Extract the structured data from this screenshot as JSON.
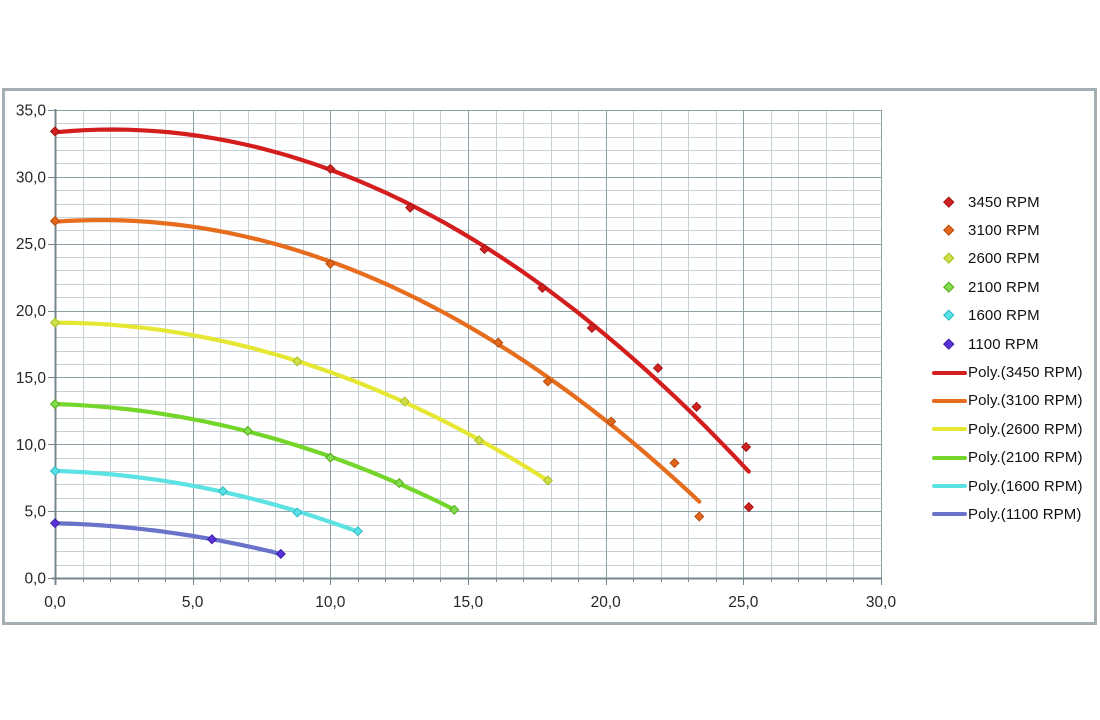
{
  "chart_data": {
    "type": "scatter",
    "title": "",
    "description": "Performance curves: six speed series with 2nd-order polynomial trendlines",
    "x_axis": {
      "min": 0,
      "max": 30,
      "major_step": 5,
      "minor_step": 1,
      "major_labels": [
        "0,0",
        "5,0",
        "10,0",
        "15,0",
        "20,0",
        "25,0",
        "30,0"
      ]
    },
    "y_axis": {
      "min": 0,
      "max": 35,
      "major_step": 5,
      "minor_step": 1,
      "major_labels": [
        "0,0",
        "5,0",
        "10,0",
        "15,0",
        "20,0",
        "25,0",
        "30,0",
        "35,0"
      ]
    },
    "grid": "major-and-minor-both-axes",
    "legend_position": "right",
    "trendline": {
      "type": "polynomial",
      "order": 2,
      "note": "drawn over each series x-range"
    },
    "series": [
      {
        "name": "3450 RPM",
        "poly_label": "Poly.(3450 RPM)",
        "line_color": "#d41e1e",
        "marker_color": "#d02222",
        "marker_stroke": "#a31212",
        "points": [
          [
            0,
            33.4
          ],
          [
            10,
            30.6
          ],
          [
            12.9,
            27.7
          ],
          [
            15.6,
            24.6
          ],
          [
            17.7,
            21.7
          ],
          [
            19.5,
            18.7
          ],
          [
            21.9,
            15.7
          ],
          [
            23.3,
            12.8
          ],
          [
            25.1,
            9.8
          ],
          [
            25.2,
            5.3
          ]
        ]
      },
      {
        "name": "3100 RPM",
        "poly_label": "Poly.(3100 RPM)",
        "line_color": "#e66c1e",
        "marker_color": "#e3661c",
        "marker_stroke": "#b54e0e",
        "points": [
          [
            0,
            26.7
          ],
          [
            10,
            23.5
          ],
          [
            16.1,
            17.6
          ],
          [
            17.9,
            14.7
          ],
          [
            20.2,
            11.7
          ],
          [
            22.5,
            8.6
          ],
          [
            23.4,
            4.6
          ]
        ]
      },
      {
        "name": "2600 RPM",
        "poly_label": "Poly.(2600 RPM)",
        "line_color": "#e5e733",
        "marker_color": "#cfe04a",
        "marker_stroke": "#a9bf1d",
        "points": [
          [
            0,
            19.1
          ],
          [
            8.8,
            16.2
          ],
          [
            12.7,
            13.2
          ],
          [
            15.4,
            10.3
          ],
          [
            17.9,
            7.3
          ]
        ]
      },
      {
        "name": "2100 RPM",
        "poly_label": "Poly.(2100 RPM)",
        "line_color": "#74d52a",
        "marker_color": "#82dc4e",
        "marker_stroke": "#55ab1a",
        "points": [
          [
            0,
            13.0
          ],
          [
            7.0,
            11.0
          ],
          [
            10.0,
            9.0
          ],
          [
            12.5,
            7.1
          ],
          [
            14.5,
            5.1
          ]
        ]
      },
      {
        "name": "1600 RPM",
        "poly_label": "Poly.(1600 RPM)",
        "line_color": "#5ce2e2",
        "marker_color": "#58e2e8",
        "marker_stroke": "#2fb8c0",
        "points": [
          [
            0,
            8.0
          ],
          [
            6.1,
            6.5
          ],
          [
            8.8,
            4.9
          ],
          [
            11.0,
            3.5
          ]
        ]
      },
      {
        "name": "1100 RPM",
        "poly_label": "Poly.(1100 RPM)",
        "line_color": "#6973ca",
        "marker_color": "#5a32dc",
        "marker_stroke": "#3d1fa8",
        "points": [
          [
            0,
            4.1
          ],
          [
            5.7,
            2.9
          ],
          [
            8.2,
            1.8
          ]
        ]
      }
    ]
  },
  "colors": {
    "background": "#ffffff",
    "frame_border": "#a3afb3",
    "grid_minor": "#c7d0d5",
    "grid_major": "#8e9fa6",
    "axis_line": "#75878d",
    "tick_text": "#262626",
    "legend_text": "#111111"
  }
}
